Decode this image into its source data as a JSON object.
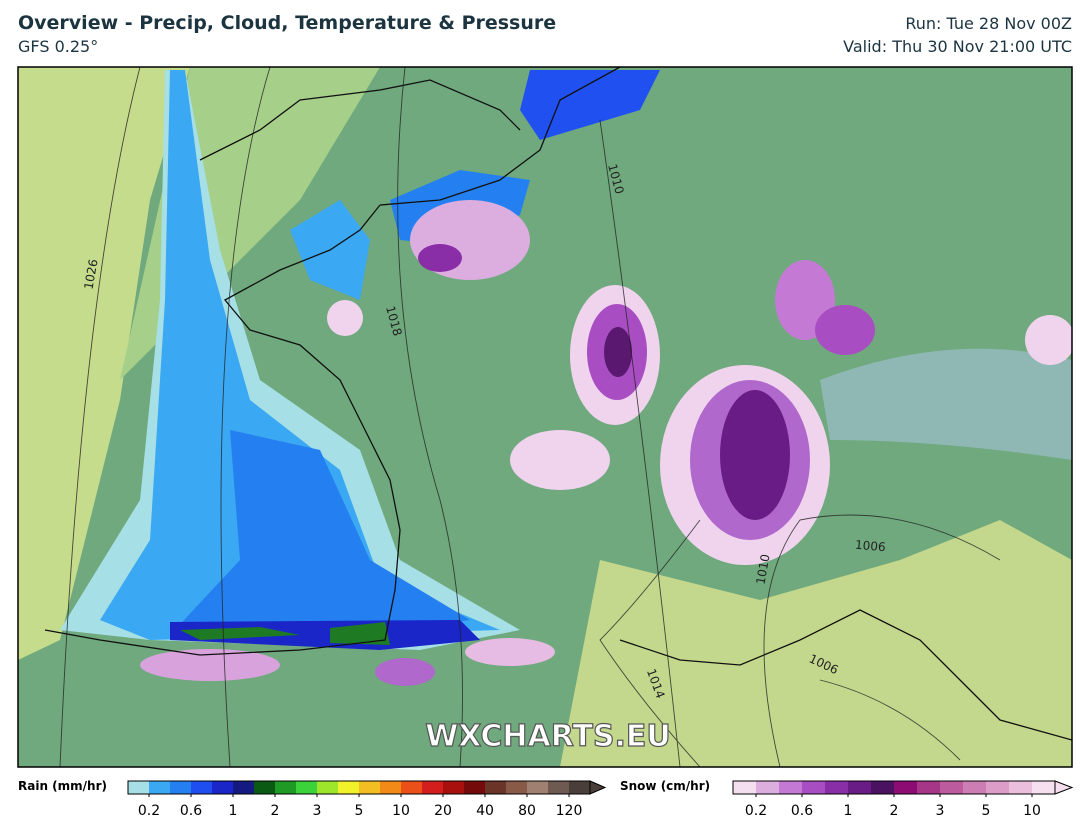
{
  "header": {
    "title": "Overview - Precip, Cloud, Temperature & Pressure",
    "model": "GFS 0.25°",
    "run": "Run: Tue 28 Nov 00Z",
    "valid": "Valid: Thu 30 Nov 21:00 UTC"
  },
  "map": {
    "watermark": "WXCHARTS.EU",
    "isobar_labels": [
      "1026",
      "1018",
      "1010",
      "1010",
      "1006",
      "1006",
      "1014"
    ]
  },
  "legends": [
    {
      "title": "Rain (mm/hr)",
      "ticks": [
        "0.2",
        "0.6",
        "1",
        "2",
        "3",
        "5",
        "10",
        "20",
        "40",
        "80",
        "120"
      ],
      "colors": [
        "#a6dfe6",
        "#3aa8f2",
        "#2480f0",
        "#1f4ef0",
        "#1a26c8",
        "#141a80",
        "#0b5a14",
        "#1f9a24",
        "#3cd23a",
        "#9ee62c",
        "#f2f22a",
        "#f2be22",
        "#f28a18",
        "#ea5018",
        "#d41e1e",
        "#a8100e",
        "#740a0a",
        "#6a3428",
        "#8a5a48",
        "#a08070",
        "#6e5a50",
        "#4a3e3a"
      ]
    },
    {
      "title": "Snow (cm/hr)",
      "ticks": [
        "0.2",
        "0.6",
        "1",
        "2",
        "3",
        "5",
        "10"
      ],
      "colors": [
        "#f4dff0",
        "#dcaee0",
        "#c47ad4",
        "#a84ec2",
        "#8a2ea8",
        "#6a1c86",
        "#4c1262",
        "#8c0c74",
        "#a63688",
        "#bc5c9e",
        "#cc7eb4",
        "#dc9ec8",
        "#eabedc",
        "#f6e0f0"
      ]
    }
  ]
}
